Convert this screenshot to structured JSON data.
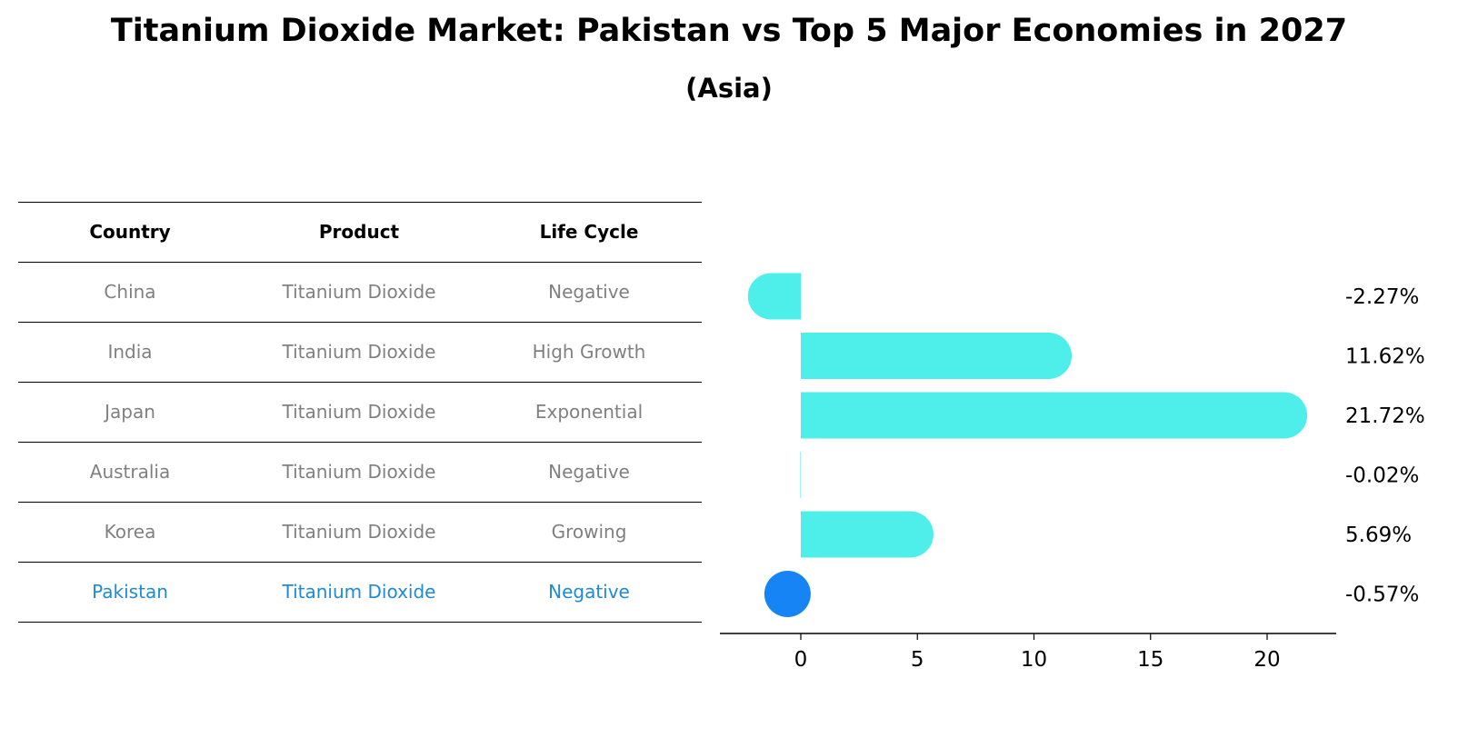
{
  "title": "Titanium Dioxide Market: Pakistan vs Top 5 Major Economies in 2027",
  "subtitle": "(Asia)",
  "table": {
    "headers": [
      "Country",
      "Product",
      "Life Cycle"
    ],
    "rows": [
      {
        "country": "China",
        "product": "Titanium Dioxide",
        "life_cycle": "Negative"
      },
      {
        "country": "India",
        "product": "Titanium Dioxide",
        "life_cycle": "High Growth"
      },
      {
        "country": "Japan",
        "product": "Titanium Dioxide",
        "life_cycle": "Exponential"
      },
      {
        "country": "Australia",
        "product": "Titanium Dioxide",
        "life_cycle": "Negative"
      },
      {
        "country": "Korea",
        "product": "Titanium Dioxide",
        "life_cycle": "Growing"
      },
      {
        "country": "Pakistan",
        "product": "Titanium Dioxide",
        "life_cycle": "Negative"
      }
    ],
    "highlight_row": 5
  },
  "colors": {
    "bar": "#4eeeea",
    "highlight_bar": "#1784f5",
    "highlight_text": "#1f8ad6",
    "muted_text": "#808080"
  },
  "chart_data": {
    "type": "bar",
    "orientation": "horizontal",
    "title": "Titanium Dioxide Market: Pakistan vs Top 5 Major Economies in 2027",
    "subtitle": "(Asia)",
    "categories": [
      "China",
      "India",
      "Japan",
      "Australia",
      "Korea",
      "Pakistan"
    ],
    "values": [
      -2.27,
      11.62,
      21.72,
      -0.02,
      5.69,
      -0.57
    ],
    "value_labels": [
      "-2.27%",
      "11.62%",
      "21.72%",
      "-0.02%",
      "5.69%",
      "-0.57%"
    ],
    "highlight_index": 5,
    "xlim": [
      -3.5,
      23
    ],
    "xticks": [
      0,
      5,
      10,
      15,
      20
    ],
    "xlabel": "",
    "ylabel": "",
    "grid": false
  }
}
